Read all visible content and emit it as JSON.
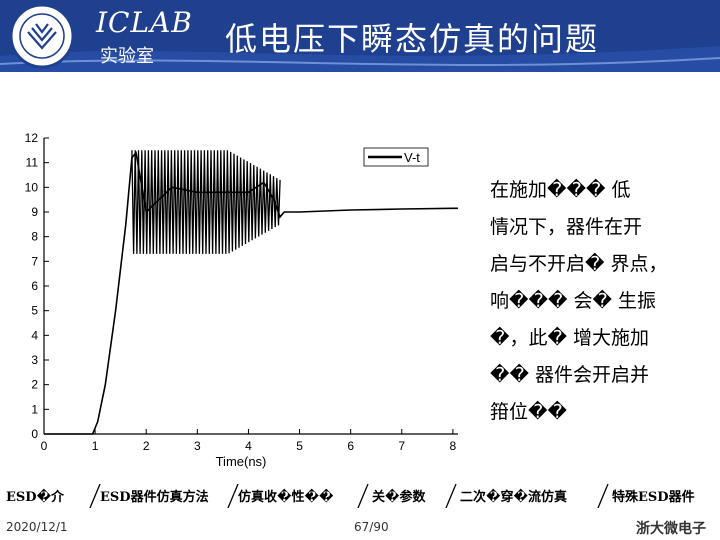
{
  "header": {
    "lab_name": "ICLAB",
    "lab_sub": "实验室",
    "title": "低电压下瞬态仿真的问题"
  },
  "chart_data": {
    "type": "line",
    "xlabel": "Time(ns)",
    "ylabel": "",
    "xlim": [
      0,
      8.1
    ],
    "ylim": [
      0,
      12
    ],
    "xticks": [
      "0",
      "1",
      "2",
      "3",
      "4",
      "5",
      "6",
      "7",
      "8"
    ],
    "yticks": [
      "0",
      "1",
      "2",
      "3",
      "4",
      "5",
      "6",
      "7",
      "8",
      "9",
      "10",
      "11",
      "12"
    ],
    "legend": "top-right",
    "series": [
      {
        "name": "V-t",
        "x": [
          0,
          0.95,
          1.05,
          1.2,
          1.4,
          1.6,
          1.72,
          1.8,
          2.0,
          2.5,
          3.0,
          3.5,
          4.0,
          4.3,
          4.5,
          4.62,
          4.7,
          4.85,
          5.0,
          6.0,
          7.0,
          8.0,
          8.1
        ],
        "y": [
          0,
          0,
          0.5,
          2.0,
          5.0,
          8.5,
          11.2,
          11.4,
          9.0,
          10.0,
          9.8,
          9.8,
          9.8,
          10.2,
          9.5,
          8.8,
          9.0,
          9.0,
          9.0,
          9.08,
          9.12,
          9.15,
          9.15
        ]
      }
    ],
    "annotations": [
      {
        "region": "oscillation",
        "x_start": 1.72,
        "x_end": 4.62,
        "y_min": 7.3,
        "y_max": 11.5
      }
    ]
  },
  "description": {
    "lines": [
      "在施加��� 低",
      "情况下，器件在开",
      "启与不开启� 界点，",
      "响��� 会� 生振",
      "�，此� 增大施加",
      "�� 器件会开启并",
      "箝位��"
    ]
  },
  "nav": {
    "items": [
      "ESD�介",
      "ESD器件仿真方法",
      "仿真收�性��",
      "关�参数",
      "二次�穿�流仿真",
      "特殊ESD器件"
    ]
  },
  "footer": {
    "date": "2020/12/1",
    "page": "67/90",
    "brand": "浙大微电子"
  },
  "colors": {
    "header_bg": "#1f3f8f",
    "line": "#000000"
  }
}
